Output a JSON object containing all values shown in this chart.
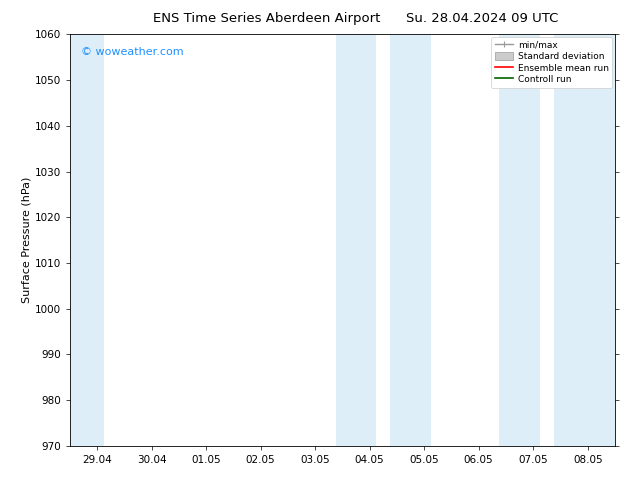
{
  "title_left": "ENS Time Series Aberdeen Airport",
  "title_right": "Su. 28.04.2024 09 UTC",
  "ylabel": "Surface Pressure (hPa)",
  "ylim": [
    970,
    1060
  ],
  "yticks": [
    970,
    980,
    990,
    1000,
    1010,
    1020,
    1030,
    1040,
    1050,
    1060
  ],
  "xtick_labels": [
    "29.04",
    "30.04",
    "01.05",
    "02.05",
    "03.05",
    "04.05",
    "05.05",
    "06.05",
    "07.05",
    "08.05"
  ],
  "xtick_positions": [
    0,
    1,
    2,
    3,
    4,
    5,
    6,
    7,
    8,
    9
  ],
  "xlim": [
    -0.5,
    9.5
  ],
  "shaded_bands": [
    {
      "x_start": -0.5,
      "x_end": 0.12,
      "color": "#ddeef8"
    },
    {
      "x_start": 4.38,
      "x_end": 5.12,
      "color": "#ddeef8"
    },
    {
      "x_start": 5.38,
      "x_end": 6.12,
      "color": "#ddeef8"
    },
    {
      "x_start": 7.38,
      "x_end": 8.12,
      "color": "#ddeef8"
    },
    {
      "x_start": 8.38,
      "x_end": 9.5,
      "color": "#ddeef8"
    }
  ],
  "watermark_text": "© woweather.com",
  "watermark_color": "#1E90FF",
  "bg_color": "#ffffff",
  "plot_bg_color": "#ffffff",
  "legend_labels": [
    "min/max",
    "Standard deviation",
    "Ensemble mean run",
    "Controll run"
  ],
  "tick_fontsize": 7.5,
  "ylabel_fontsize": 8,
  "title_fontsize": 9.5
}
